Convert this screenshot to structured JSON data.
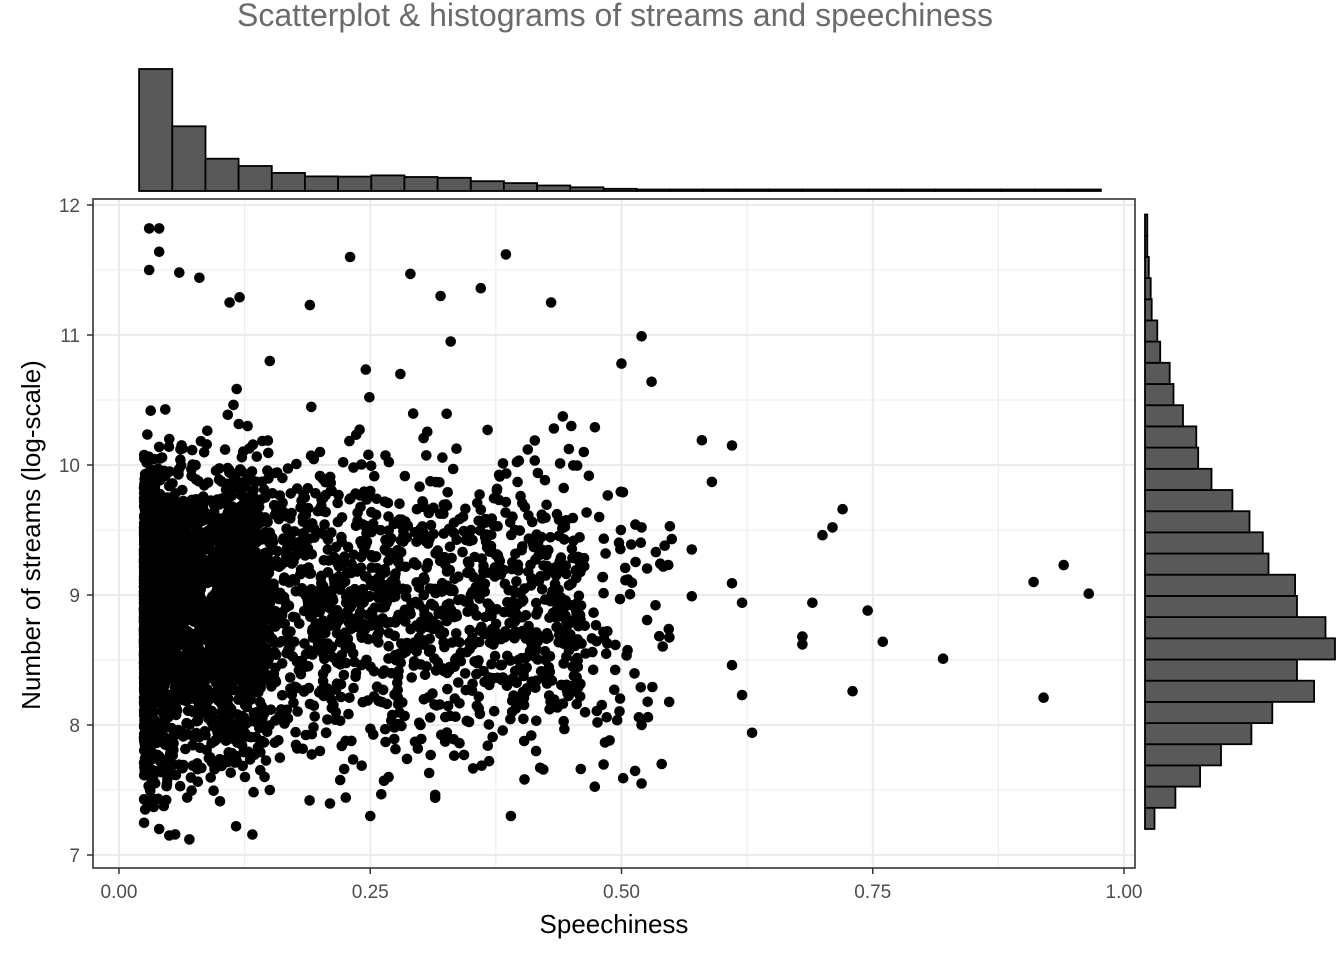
{
  "chart_data": {
    "type": "scatter",
    "title": "Scatterplot & histograms of streams and speechiness",
    "xlabel": "Speechiness",
    "ylabel": "Number of streams (log-scale)",
    "xlim": [
      0.0,
      1.0
    ],
    "ylim": [
      7,
      12
    ],
    "x_ticks": [
      "0.00",
      "0.25",
      "0.50",
      "0.75",
      "1.00"
    ],
    "y_ticks": [
      "7",
      "8",
      "9",
      "10",
      "11",
      "12"
    ],
    "grid": true,
    "legend": "none",
    "colors": {
      "points": "#000000",
      "bars": "#595959",
      "bar_outline": "#000000",
      "grid": "#ebebeb",
      "panel_border": "#333333",
      "title": "#6b6b6b"
    },
    "points_sampled": [
      [
        0.03,
        11.82
      ],
      [
        0.04,
        11.82
      ],
      [
        0.04,
        11.64
      ],
      [
        0.23,
        11.6
      ],
      [
        0.385,
        11.62
      ],
      [
        0.03,
        11.5
      ],
      [
        0.06,
        11.48
      ],
      [
        0.08,
        11.44
      ],
      [
        0.29,
        11.47
      ],
      [
        0.36,
        11.36
      ],
      [
        0.11,
        11.25
      ],
      [
        0.12,
        11.29
      ],
      [
        0.43,
        11.25
      ],
      [
        0.32,
        11.3
      ],
      [
        0.19,
        11.23
      ],
      [
        0.52,
        10.99
      ],
      [
        0.5,
        10.78
      ],
      [
        0.53,
        10.64
      ],
      [
        0.58,
        10.19
      ],
      [
        0.61,
        10.15
      ],
      [
        0.59,
        9.87
      ],
      [
        0.72,
        9.66
      ],
      [
        0.71,
        9.52
      ],
      [
        0.7,
        9.46
      ],
      [
        0.94,
        9.23
      ],
      [
        0.91,
        9.1
      ],
      [
        0.965,
        9.01
      ],
      [
        0.57,
        8.99
      ],
      [
        0.61,
        9.09
      ],
      [
        0.62,
        8.94
      ],
      [
        0.69,
        8.94
      ],
      [
        0.745,
        8.88
      ],
      [
        0.68,
        8.68
      ],
      [
        0.68,
        8.62
      ],
      [
        0.76,
        8.64
      ],
      [
        0.82,
        8.51
      ],
      [
        0.61,
        8.46
      ],
      [
        0.62,
        8.23
      ],
      [
        0.73,
        8.26
      ],
      [
        0.92,
        8.21
      ],
      [
        0.63,
        7.94
      ],
      [
        0.39,
        7.3
      ],
      [
        0.05,
        7.15
      ],
      [
        0.07,
        7.12
      ],
      [
        0.04,
        7.2
      ],
      [
        0.52,
        7.55
      ],
      [
        0.54,
        7.7
      ],
      [
        0.52,
        8.0
      ],
      [
        0.52,
        9.52
      ],
      [
        0.55,
        9.43
      ],
      [
        0.57,
        9.35
      ],
      [
        0.45,
        10.3
      ],
      [
        0.33,
        10.95
      ],
      [
        0.28,
        10.7
      ],
      [
        0.15,
        10.8
      ],
      [
        0.2,
        10.1
      ],
      [
        0.25,
        9.8
      ],
      [
        0.3,
        9.5
      ],
      [
        0.35,
        9.0
      ],
      [
        0.4,
        8.7
      ],
      [
        0.45,
        8.3
      ],
      [
        0.3,
        8.0
      ],
      [
        0.2,
        7.8
      ],
      [
        0.15,
        7.5
      ],
      [
        0.25,
        7.3
      ],
      [
        0.1,
        9.0
      ],
      [
        0.08,
        8.5
      ],
      [
        0.06,
        9.5
      ],
      [
        0.05,
        10.2
      ],
      [
        0.04,
        8.0
      ]
    ],
    "point_density_note": "Thousands of points densely concentrated between speechiness 0.03 and 0.12, thinning toward 0.5",
    "histogram_top": {
      "bin_edges": [
        0.02,
        0.053,
        0.086,
        0.119,
        0.152,
        0.185,
        0.218,
        0.251,
        0.284,
        0.317,
        0.35,
        0.383,
        0.416,
        0.449,
        0.482,
        0.515,
        0.548,
        0.581,
        0.614,
        0.647,
        0.68,
        0.713,
        0.746,
        0.779,
        0.812,
        0.845,
        0.878,
        0.911,
        0.944,
        0.977
      ],
      "counts": [
        1000,
        530,
        265,
        205,
        148,
        120,
        118,
        128,
        115,
        108,
        80,
        65,
        45,
        30,
        18,
        10,
        5,
        3,
        2,
        2,
        1,
        1,
        1,
        1,
        1,
        1,
        1,
        1,
        1
      ]
    },
    "histogram_right": {
      "bin_edges": [
        7.2,
        7.363,
        7.526,
        7.689,
        7.852,
        8.015,
        8.178,
        8.341,
        8.504,
        8.667,
        8.83,
        8.993,
        9.156,
        9.319,
        9.482,
        9.645,
        9.808,
        9.971,
        10.134,
        10.297,
        10.46,
        10.623,
        10.786,
        10.949,
        11.112,
        11.275,
        11.438,
        11.601,
        11.764,
        11.927
      ],
      "counts": [
        50,
        160,
        290,
        400,
        560,
        670,
        890,
        800,
        1000,
        950,
        800,
        790,
        650,
        620,
        550,
        460,
        350,
        280,
        270,
        200,
        150,
        130,
        80,
        65,
        35,
        30,
        20,
        12,
        12
      ]
    }
  }
}
